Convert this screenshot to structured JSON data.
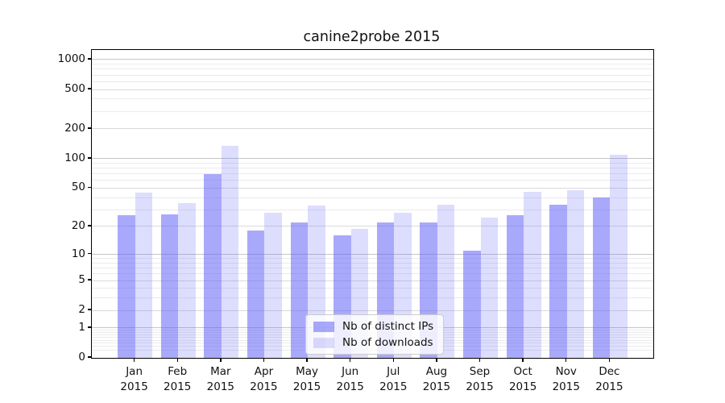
{
  "chart_data": {
    "type": "bar",
    "title": "canine2probe 2015",
    "scale": "log1p",
    "grid": "both",
    "categories": [
      "Jan",
      "Feb",
      "Mar",
      "Apr",
      "May",
      "Jun",
      "Jul",
      "Aug",
      "Sep",
      "Oct",
      "Nov",
      "Dec"
    ],
    "category_year": "2015",
    "series": [
      {
        "name": "Nb of distinct IPs",
        "color": "#6363f8",
        "alpha": 0.55,
        "values": [
          26,
          27,
          70,
          18,
          22,
          16,
          22,
          22,
          11,
          26,
          34,
          40
        ]
      },
      {
        "name": "Nb of downloads",
        "color": "#6363f8",
        "alpha": 0.22,
        "values": [
          45,
          35,
          134,
          28,
          33,
          19,
          28,
          34,
          25,
          46,
          48,
          110
        ]
      }
    ],
    "y_ticks": [
      0,
      1,
      2,
      5,
      10,
      20,
      50,
      100,
      200,
      500,
      1000
    ],
    "ylim": [
      0,
      1250
    ],
    "legend_position": "lower-center-inside",
    "grid_colors": {
      "decade": "#c6c6c6",
      "sub_major": "#dadada",
      "minor": "#ebebeb"
    }
  }
}
